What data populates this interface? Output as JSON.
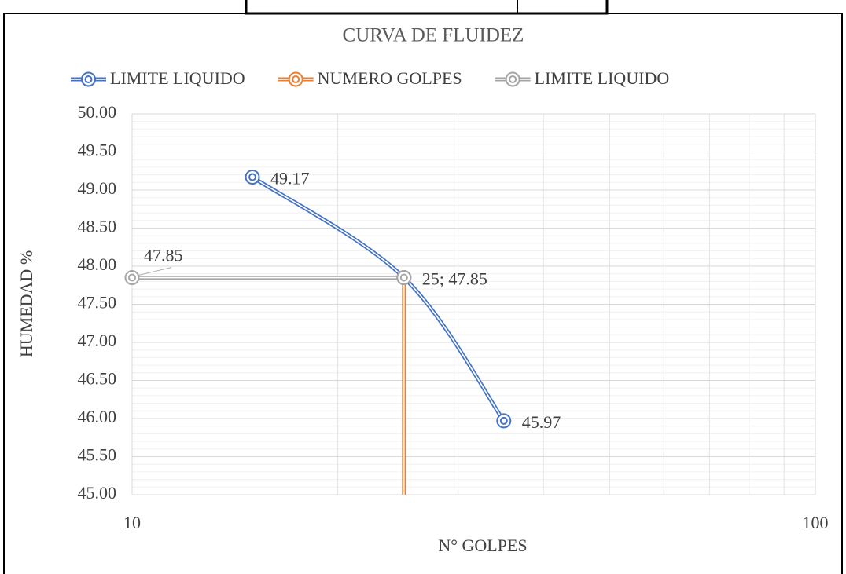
{
  "chart_data": {
    "type": "line",
    "title": "CURVA DE FLUIDEZ",
    "x_label": "N° GOLPES",
    "y_label": "HUMEDAD %",
    "log_x": true,
    "grid": true,
    "minor_grid": true,
    "legend": "top",
    "xlim": [
      10,
      100
    ],
    "xticks": [
      10,
      100
    ],
    "ylim": [
      45,
      50
    ],
    "yticks": [
      {
        "value": 45,
        "label": "45.00"
      },
      {
        "value": 45.5,
        "label": "45.50"
      },
      {
        "value": 46,
        "label": "46.00"
      },
      {
        "value": 46.5,
        "label": "46.50"
      },
      {
        "value": 47,
        "label": "47.00"
      },
      {
        "value": 47.5,
        "label": "47.50"
      },
      {
        "value": 48,
        "label": "48.00"
      },
      {
        "value": 48.5,
        "label": "48.50"
      },
      {
        "value": 49,
        "label": "49.00"
      },
      {
        "value": 49.5,
        "label": "49.50"
      },
      {
        "value": 50,
        "label": "50.00"
      }
    ],
    "series": [
      {
        "name": "LIMITE LIQUIDO",
        "color": "#4472c4",
        "marker": true,
        "smooth": true,
        "x": [
          15,
          25,
          35
        ],
        "values": [
          49.17,
          47.85,
          45.97
        ],
        "value_labels": [
          "49.17",
          "25; 47.85",
          "45.97"
        ]
      },
      {
        "name": "NUMERO GOLPES",
        "color": "#ed7d31",
        "marker": false,
        "smooth": false,
        "x": [
          25,
          25
        ],
        "values": [
          47.85,
          45
        ]
      },
      {
        "name": "LIMITE LIQUIDO",
        "color": "#a5a5a5",
        "marker": true,
        "smooth": false,
        "x": [
          10,
          25
        ],
        "values": [
          47.85,
          47.85
        ],
        "value_labels": [
          "47.85",
          null
        ]
      }
    ]
  }
}
